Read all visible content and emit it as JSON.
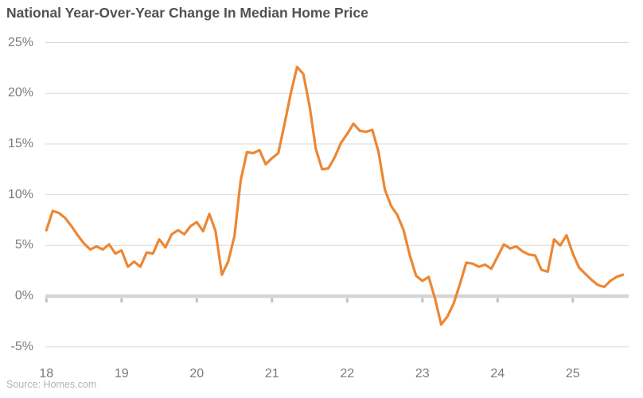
{
  "header": {
    "title": "National Year-Over-Year Change In Median Home Price"
  },
  "footer": {
    "source": "Source: Homes.com"
  },
  "colors": {
    "line": "#ED8733",
    "title_text": "#515151",
    "axis_text": "#7a7a7a",
    "source_text": "#b4b4b4",
    "gridline": "#d9d9d9",
    "zero_line": "#d5d5d5",
    "year_tick": "#c2c2c2",
    "background": "#ffffff"
  },
  "chart_data": {
    "type": "line",
    "title": "National Year-Over-Year Change In Median Home Price",
    "xlabel": "",
    "ylabel": "",
    "unit": "%",
    "frequency": "monthly",
    "start_month": "2018-01",
    "end_month": "2025-09",
    "ylim": [
      -5,
      25
    ],
    "grid": "horizontal",
    "zero_axis_style": "thick",
    "legend": "none",
    "x_tick_labels": [
      "18",
      "19",
      "20",
      "21",
      "22",
      "23",
      "24",
      "25"
    ],
    "y_tick_labels": [
      "25%",
      "20%",
      "15%",
      "10%",
      "5%",
      "0%",
      "-5%"
    ],
    "y_tick_values": [
      25,
      20,
      15,
      10,
      5,
      0,
      -5
    ],
    "series": [
      {
        "name": "National year-over-year change in median home price (%)",
        "values": [
          6.5,
          8.4,
          8.2,
          7.7,
          6.9,
          6.0,
          5.2,
          4.6,
          4.9,
          4.6,
          5.1,
          4.2,
          4.5,
          2.9,
          3.4,
          2.9,
          4.3,
          4.2,
          5.6,
          4.8,
          6.1,
          6.5,
          6.1,
          6.9,
          7.3,
          6.4,
          8.1,
          6.4,
          2.1,
          3.4,
          5.9,
          11.4,
          14.2,
          14.1,
          14.4,
          13.0,
          13.6,
          14.1,
          17.0,
          20.0,
          22.6,
          21.9,
          18.7,
          14.5,
          12.5,
          12.6,
          13.7,
          15.1,
          16.0,
          17.0,
          16.3,
          16.2,
          16.4,
          14.2,
          10.5,
          8.9,
          8.0,
          6.5,
          4.0,
          2.0,
          1.5,
          1.9,
          -0.2,
          -2.8,
          -2.0,
          -0.7,
          1.2,
          3.3,
          3.2,
          2.9,
          3.1,
          2.7,
          3.9,
          5.1,
          4.7,
          4.9,
          4.4,
          4.1,
          4.0,
          2.6,
          2.4,
          5.6,
          5.0,
          6.0,
          4.2,
          2.8,
          2.2,
          1.6,
          1.1,
          0.9,
          1.5,
          1.9,
          2.1
        ]
      }
    ],
    "source": "Source: Homes.com"
  }
}
